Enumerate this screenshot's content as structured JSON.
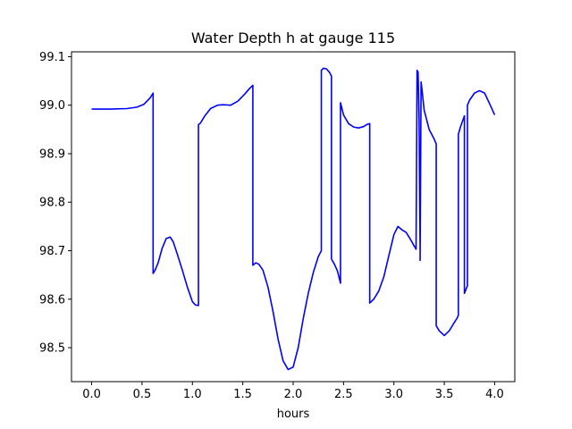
{
  "chart_data": {
    "type": "line",
    "title": "Water Depth h at gauge 115",
    "xlabel": "hours",
    "ylabel": "",
    "xlim": [
      -0.2,
      4.2
    ],
    "ylim": [
      98.43,
      99.11
    ],
    "xticks": [
      0.0,
      0.5,
      1.0,
      1.5,
      2.0,
      2.5,
      3.0,
      3.5,
      4.0
    ],
    "xtick_labels": [
      "0.0",
      "0.5",
      "1.0",
      "1.5",
      "2.0",
      "2.5",
      "3.0",
      "3.5",
      "4.0"
    ],
    "yticks": [
      98.5,
      98.6,
      98.7,
      98.8,
      98.9,
      99.0,
      99.1
    ],
    "ytick_labels": [
      "98.5",
      "98.6",
      "98.7",
      "98.8",
      "98.9",
      "99.0",
      "99.1"
    ],
    "grid": false,
    "series": [
      {
        "color": "#0000ff",
        "x": [
          0.0,
          0.2,
          0.35,
          0.45,
          0.52,
          0.58,
          0.61,
          0.61,
          0.63,
          0.66,
          0.7,
          0.74,
          0.78,
          0.81,
          0.85,
          0.9,
          0.95,
          1.0,
          1.03,
          1.06,
          1.06,
          1.08,
          1.12,
          1.18,
          1.25,
          1.3,
          1.38,
          1.45,
          1.52,
          1.57,
          1.6,
          1.6,
          1.63,
          1.66,
          1.7,
          1.75,
          1.8,
          1.85,
          1.9,
          1.95,
          2.0,
          2.05,
          2.1,
          2.15,
          2.2,
          2.25,
          2.28,
          2.28,
          2.3,
          2.33,
          2.36,
          2.38,
          2.38,
          2.41,
          2.44,
          2.47,
          2.47,
          2.5,
          2.55,
          2.6,
          2.65,
          2.7,
          2.73,
          2.76,
          2.76,
          2.8,
          2.85,
          2.9,
          2.95,
          3.0,
          3.04,
          3.08,
          3.12,
          3.16,
          3.2,
          3.22,
          3.23,
          3.24,
          3.25,
          3.26,
          3.26,
          3.27,
          3.28,
          3.29,
          3.3,
          3.35,
          3.4,
          3.42,
          3.42,
          3.45,
          3.5,
          3.55,
          3.6,
          3.63,
          3.64,
          3.64,
          3.66,
          3.7,
          3.7,
          3.73,
          3.73,
          3.75,
          3.8,
          3.85,
          3.9,
          3.95,
          4.0
        ],
        "values": [
          98.992,
          98.992,
          98.993,
          98.996,
          99.002,
          99.015,
          99.025,
          98.653,
          98.66,
          98.675,
          98.705,
          98.725,
          98.728,
          98.718,
          98.693,
          98.66,
          98.625,
          98.595,
          98.588,
          98.587,
          98.96,
          98.963,
          98.977,
          98.993,
          99.0,
          99.001,
          99.0,
          99.008,
          99.023,
          99.035,
          99.041,
          98.67,
          98.675,
          98.672,
          98.66,
          98.625,
          98.575,
          98.518,
          98.473,
          98.455,
          98.46,
          98.5,
          98.56,
          98.612,
          98.655,
          98.688,
          98.7,
          99.072,
          99.076,
          99.075,
          99.068,
          99.06,
          98.683,
          98.672,
          98.658,
          98.633,
          99.005,
          98.98,
          98.962,
          98.955,
          98.953,
          98.956,
          98.96,
          98.962,
          98.592,
          98.6,
          98.617,
          98.646,
          98.69,
          98.733,
          98.75,
          98.743,
          98.738,
          98.725,
          98.71,
          98.703,
          99.072,
          99.068,
          98.97,
          98.7,
          98.68,
          99.048,
          99.03,
          99.01,
          98.99,
          98.95,
          98.93,
          98.92,
          98.545,
          98.535,
          98.525,
          98.535,
          98.552,
          98.562,
          98.567,
          98.94,
          98.955,
          98.978,
          98.612,
          98.628,
          99.0,
          99.01,
          99.025,
          99.03,
          99.025,
          99.003,
          98.98
        ]
      }
    ]
  }
}
